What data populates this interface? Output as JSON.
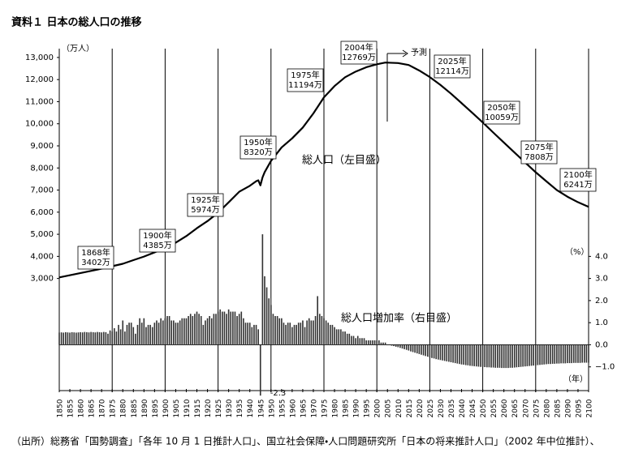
{
  "chart_data": {
    "type": "combo",
    "title": "資料１ 日本の総人口の推移",
    "ylabel": "（万人）",
    "y2label": "（%）",
    "xlabel": "（年）",
    "source": "（出所）総務省「国勢調査」「各年 10 月 1 日推計人口」、国立社会保障・人口問題研究所「日本の将来推計人口」（2002 年中位推計）、",
    "forecast_label": "予測",
    "xlim": [
      1850,
      2100
    ],
    "xticks": [
      1850,
      1855,
      1860,
      1865,
      1870,
      1875,
      1880,
      1885,
      1890,
      1895,
      1900,
      1905,
      1910,
      1915,
      1920,
      1925,
      1930,
      1935,
      1940,
      1945,
      1950,
      1955,
      1960,
      1965,
      1970,
      1975,
      1980,
      1985,
      1990,
      1995,
      2000,
      2005,
      2010,
      2015,
      2020,
      2025,
      2030,
      2035,
      2040,
      2045,
      2050,
      2055,
      2060,
      2065,
      2070,
      2075,
      2080,
      2085,
      2090,
      2095,
      2100
    ],
    "ylim": [
      -2000,
      13400
    ],
    "yticks": [
      {
        "value": 3000,
        "label": "3,000"
      },
      {
        "value": 4000,
        "label": "4,000"
      },
      {
        "value": 5000,
        "label": "5,000"
      },
      {
        "value": 6000,
        "label": "6,000"
      },
      {
        "value": 7000,
        "label": "7,000"
      },
      {
        "value": 8000,
        "label": "8,000"
      },
      {
        "value": 9000,
        "label": "9,000"
      },
      {
        "value": 10000,
        "label": "10,000"
      },
      {
        "value": 11000,
        "label": "11,000"
      },
      {
        "value": 12000,
        "label": "12,000"
      },
      {
        "value": 13000,
        "label": "13,000"
      }
    ],
    "y2lim": [
      -2,
      13.4
    ],
    "y2ticks": [
      {
        "value": 4,
        "label": "4.0"
      },
      {
        "value": 3,
        "label": "3.0"
      },
      {
        "value": 2,
        "label": "2.0"
      },
      {
        "value": 1,
        "label": "1.0"
      },
      {
        "value": 0,
        "label": "0.0"
      },
      {
        "value": -1,
        "label": "−1.0"
      }
    ],
    "series": [
      {
        "name": "総人口（左目盛）",
        "type": "line",
        "axis": "y",
        "color": "#000000",
        "x": [
          1850,
          1868,
          1875,
          1880,
          1885,
          1890,
          1895,
          1900,
          1905,
          1910,
          1915,
          1920,
          1925,
          1930,
          1935,
          1940,
          1943,
          1944,
          1945,
          1946,
          1947,
          1950,
          1955,
          1960,
          1965,
          1970,
          1975,
          1980,
          1985,
          1990,
          1995,
          2000,
          2004,
          2010,
          2015,
          2020,
          2025,
          2030,
          2035,
          2040,
          2045,
          2050,
          2055,
          2060,
          2065,
          2070,
          2075,
          2080,
          2085,
          2090,
          2095,
          2100
        ],
        "values": [
          3050,
          3402,
          3555,
          3665,
          3830,
          3990,
          4180,
          4385,
          4620,
          4918,
          5275,
          5596,
          5974,
          6445,
          6925,
          7193,
          7400,
          7443,
          7215,
          7575,
          7810,
          8320,
          8928,
          9342,
          9828,
          10467,
          11194,
          11706,
          12105,
          12361,
          12557,
          12693,
          12769,
          12747,
          12660,
          12411,
          12114,
          11758,
          11362,
          10934,
          10500,
          10059,
          9600,
          9150,
          8700,
          8250,
          7808,
          7400,
          7000,
          6700,
          6450,
          6241
        ]
      },
      {
        "name": "総人口増加率（右目盛）",
        "type": "bar",
        "axis": "y2",
        "color": "#333333",
        "x": [
          1850,
          1851,
          1852,
          1853,
          1854,
          1855,
          1856,
          1857,
          1858,
          1859,
          1860,
          1861,
          1862,
          1863,
          1864,
          1865,
          1866,
          1867,
          1868,
          1869,
          1870,
          1871,
          1872,
          1873,
          1874,
          1875,
          1876,
          1877,
          1878,
          1879,
          1880,
          1881,
          1882,
          1883,
          1884,
          1885,
          1886,
          1887,
          1888,
          1889,
          1890,
          1891,
          1892,
          1893,
          1894,
          1895,
          1896,
          1897,
          1898,
          1899,
          1900,
          1901,
          1902,
          1903,
          1904,
          1905,
          1906,
          1907,
          1908,
          1909,
          1910,
          1911,
          1912,
          1913,
          1914,
          1915,
          1916,
          1917,
          1918,
          1919,
          1920,
          1921,
          1922,
          1923,
          1924,
          1925,
          1926,
          1927,
          1928,
          1929,
          1930,
          1931,
          1932,
          1933,
          1934,
          1935,
          1936,
          1937,
          1938,
          1939,
          1940,
          1941,
          1942,
          1943,
          1944,
          1945,
          1946,
          1947,
          1948,
          1949,
          1950,
          1951,
          1952,
          1953,
          1954,
          1955,
          1956,
          1957,
          1958,
          1959,
          1960,
          1961,
          1962,
          1963,
          1964,
          1965,
          1966,
          1967,
          1968,
          1969,
          1970,
          1971,
          1972,
          1973,
          1974,
          1975,
          1976,
          1977,
          1978,
          1979,
          1980,
          1981,
          1982,
          1983,
          1984,
          1985,
          1986,
          1987,
          1988,
          1989,
          1990,
          1991,
          1992,
          1993,
          1994,
          1995,
          1996,
          1997,
          1998,
          1999,
          2000,
          2001,
          2002,
          2003,
          2004,
          2005,
          2006,
          2007,
          2008,
          2009,
          2010,
          2011,
          2012,
          2013,
          2014,
          2015,
          2016,
          2017,
          2018,
          2019,
          2020,
          2021,
          2022,
          2023,
          2024,
          2025,
          2026,
          2027,
          2028,
          2029,
          2030,
          2031,
          2032,
          2033,
          2034,
          2035,
          2036,
          2037,
          2038,
          2039,
          2040,
          2041,
          2042,
          2043,
          2044,
          2045,
          2046,
          2047,
          2048,
          2049,
          2050,
          2051,
          2052,
          2053,
          2054,
          2055,
          2056,
          2057,
          2058,
          2059,
          2060,
          2061,
          2062,
          2063,
          2064,
          2065,
          2066,
          2067,
          2068,
          2069,
          2070,
          2071,
          2072,
          2073,
          2074,
          2075,
          2076,
          2077,
          2078,
          2079,
          2080,
          2081,
          2082,
          2083,
          2084,
          2085,
          2086,
          2087,
          2088,
          2089,
          2090,
          2091,
          2092,
          2093,
          2094,
          2095,
          2096,
          2097,
          2098,
          2099,
          2100
        ],
        "values": [
          0.55,
          0.56,
          0.55,
          0.57,
          0.56,
          0.55,
          0.57,
          0.56,
          0.55,
          0.56,
          0.57,
          0.56,
          0.58,
          0.57,
          0.56,
          0.58,
          0.57,
          0.56,
          0.58,
          0.57,
          0.56,
          0.58,
          0.57,
          0.5,
          0.65,
          0.6,
          0.75,
          0.6,
          0.9,
          0.7,
          1.1,
          0.6,
          0.9,
          1.0,
          1.0,
          0.8,
          0.5,
          0.9,
          1.2,
          1.0,
          1.2,
          0.8,
          0.9,
          0.9,
          0.8,
          1.0,
          1.1,
          1.0,
          1.2,
          1.1,
          1.2,
          1.3,
          1.3,
          1.1,
          1.1,
          1.0,
          1.0,
          1.1,
          1.2,
          1.2,
          1.2,
          1.3,
          1.4,
          1.3,
          1.4,
          1.5,
          1.4,
          1.3,
          0.9,
          1.1,
          1.2,
          1.3,
          1.2,
          1.4,
          1.4,
          1.5,
          1.6,
          1.5,
          1.5,
          1.4,
          1.6,
          1.5,
          1.5,
          1.5,
          1.3,
          1.4,
          1.5,
          1.2,
          1.0,
          1.0,
          1.0,
          0.8,
          0.9,
          0.9,
          0.7,
          -2.3,
          5.0,
          3.1,
          2.6,
          2.1,
          1.8,
          1.4,
          1.3,
          1.3,
          1.2,
          1.2,
          1.0,
          0.9,
          1.0,
          1.0,
          0.8,
          0.9,
          0.9,
          1.0,
          1.0,
          1.1,
          0.8,
          1.1,
          1.2,
          1.1,
          1.1,
          1.3,
          2.2,
          1.4,
          1.3,
          1.2,
          1.1,
          1.0,
          0.9,
          0.9,
          0.8,
          0.7,
          0.7,
          0.7,
          0.6,
          0.6,
          0.5,
          0.5,
          0.4,
          0.4,
          0.3,
          0.4,
          0.3,
          0.3,
          0.3,
          0.2,
          0.2,
          0.2,
          0.2,
          0.2,
          0.2,
          0.2,
          0.1,
          0.1,
          0.1,
          0.0,
          -0.02,
          -0.04,
          -0.06,
          -0.09,
          -0.11,
          -0.14,
          -0.17,
          -0.2,
          -0.23,
          -0.26,
          -0.3,
          -0.33,
          -0.36,
          -0.39,
          -0.42,
          -0.45,
          -0.48,
          -0.51,
          -0.54,
          -0.57,
          -0.6,
          -0.62,
          -0.65,
          -0.67,
          -0.69,
          -0.71,
          -0.73,
          -0.75,
          -0.77,
          -0.79,
          -0.81,
          -0.83,
          -0.85,
          -0.87,
          -0.89,
          -0.9,
          -0.92,
          -0.93,
          -0.95,
          -0.96,
          -0.97,
          -0.98,
          -0.99,
          -1.0,
          -1.0,
          -1.01,
          -1.02,
          -1.02,
          -1.03,
          -1.03,
          -1.04,
          -1.04,
          -1.04,
          -1.05,
          -1.05,
          -1.05,
          -1.05,
          -1.04,
          -1.04,
          -1.03,
          -1.02,
          -1.01,
          -1.0,
          -0.99,
          -0.98,
          -0.97,
          -0.96,
          -0.95,
          -0.94,
          -0.93,
          -0.92,
          -0.91,
          -0.9,
          -0.89,
          -0.88,
          -0.87,
          -0.87,
          -0.86,
          -0.86,
          -0.85,
          -0.85,
          -0.84,
          -0.84,
          -0.84,
          -0.83,
          -0.83,
          -0.83,
          -0.82,
          -0.82,
          -0.82,
          -0.82,
          -0.81,
          -0.81,
          -0.81,
          -0.81
        ]
      }
    ],
    "point_labels": [
      {
        "x": 1868,
        "value": 3402,
        "year_label": "1868年",
        "label": "3402万"
      },
      {
        "x": 1900,
        "value": 4385,
        "year_label": "1900年",
        "label": "4385万"
      },
      {
        "x": 1925,
        "value": 5974,
        "year_label": "1925年",
        "label": "5974万"
      },
      {
        "x": 1950,
        "value": 8320,
        "year_label": "1950年",
        "label": "8320万"
      },
      {
        "x": 1975,
        "value": 11194,
        "year_label": "1975年",
        "label": "11194万"
      },
      {
        "x": 2004,
        "value": 12769,
        "year_label": "2004年",
        "label": "12769万"
      },
      {
        "x": 2025,
        "value": 12114,
        "year_label": "2025年",
        "label": "12114万"
      },
      {
        "x": 2050,
        "value": 10059,
        "year_label": "2050年",
        "label": "10059万"
      },
      {
        "x": 2075,
        "value": 7808,
        "year_label": "2075年",
        "label": "7808万"
      },
      {
        "x": 2100,
        "value": 6241,
        "year_label": "2100年",
        "label": "6241万"
      }
    ],
    "bar_annotation": {
      "x": 1945,
      "value": -2.3,
      "label": "-2.3"
    }
  }
}
